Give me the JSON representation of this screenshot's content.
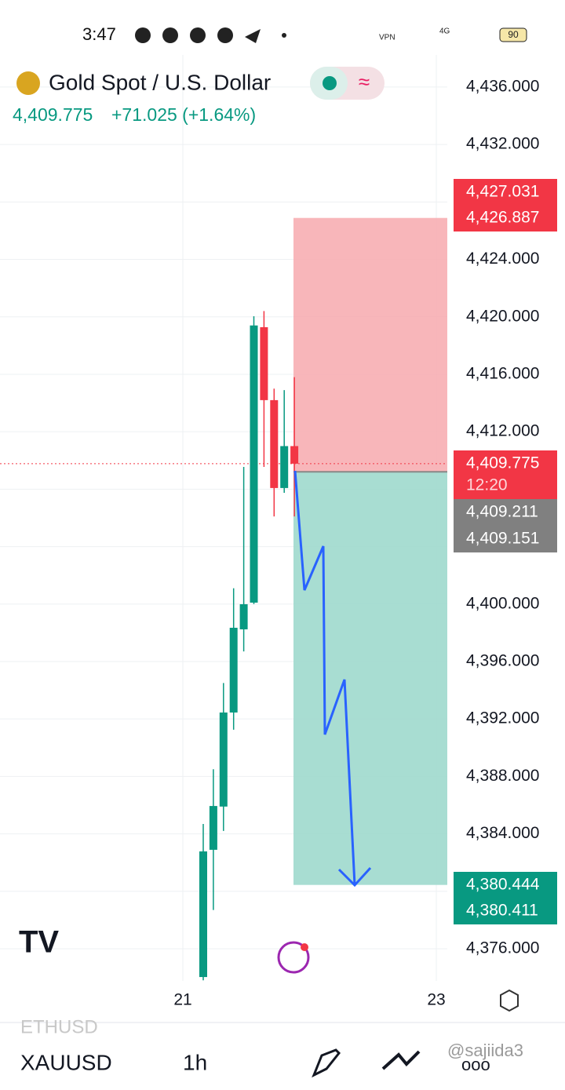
{
  "status": {
    "time": "3:47",
    "battery": "90",
    "net": "4G",
    "vpn": "VPN"
  },
  "header": {
    "title": "Gold Spot / U.S. Dollar",
    "price": "4,409.775",
    "change": "+71.025 (+1.64%)"
  },
  "chart_data": {
    "type": "candlestick",
    "up_color": "#089981",
    "down_color": "#f23645",
    "open": [
      4374.03,
      4382.89,
      4385.9,
      4392.45,
      4398.24,
      4400.1,
      4419.28,
      4414.2,
      4408.08,
      4411.0
    ],
    "high": [
      4384.69,
      4388.5,
      4394.5,
      4401.1,
      4409.55,
      4420.04,
      4420.4,
      4415.0,
      4414.9,
      4415.8
    ],
    "low": [
      4373.8,
      4378.7,
      4384.2,
      4391.25,
      4396.7,
      4400.0,
      4409.55,
      4406.1,
      4407.75,
      4406.1
    ],
    "close": [
      4382.78,
      4385.94,
      4392.45,
      4398.35,
      4399.99,
      4419.4,
      4414.2,
      4408.08,
      4411.0,
      4409.775
    ],
    "ylim": [
      4373.76,
      4437.69
    ],
    "yticks": [
      {
        "value": 4436,
        "label": "4,436.000"
      },
      {
        "value": 4432,
        "label": "4,432.000"
      },
      {
        "value": 4428,
        "label": ""
      },
      {
        "value": 4424,
        "label": "4,424.000"
      },
      {
        "value": 4420,
        "label": "4,420.000"
      },
      {
        "value": 4416,
        "label": "4,416.000"
      },
      {
        "value": 4412,
        "label": "4,412.000"
      },
      {
        "value": 4408,
        "label": ""
      },
      {
        "value": 4404,
        "label": ""
      },
      {
        "value": 4400,
        "label": "4,400.000"
      },
      {
        "value": 4396,
        "label": "4,396.000"
      },
      {
        "value": 4392,
        "label": "4,392.000"
      },
      {
        "value": 4388,
        "label": "4,388.000"
      },
      {
        "value": 4384,
        "label": "4,384.000"
      },
      {
        "value": 4380,
        "label": ""
      },
      {
        "value": 4376,
        "label": "4,376.000"
      }
    ],
    "last_price": 4409.775,
    "position": {
      "stop": 4426.887,
      "entry": 4409.211,
      "target": 4380.444,
      "stop_color": "#f7a9ae",
      "target_color": "#9fd9cd"
    },
    "x_labels": [
      "21",
      "23"
    ],
    "price_labels": [
      {
        "text": "4,427.031",
        "color": "#f23645"
      },
      {
        "text": "4,426.887",
        "color": "#f23645"
      },
      {
        "text": "4,409.775",
        "color": "#f23645"
      },
      {
        "text": "12:20",
        "color": "#f23645"
      },
      {
        "text": "4,409.211",
        "color": "#808080"
      },
      {
        "text": "4,409.151",
        "color": "#808080"
      },
      {
        "text": "4,380.444",
        "color": "#089981"
      },
      {
        "text": "4,380.411",
        "color": "#089981"
      }
    ]
  },
  "footer": {
    "prev_symbol": "ETHUSD",
    "symbol": "XAUUSD",
    "interval": "1h",
    "watermark": "@sajiida3"
  }
}
